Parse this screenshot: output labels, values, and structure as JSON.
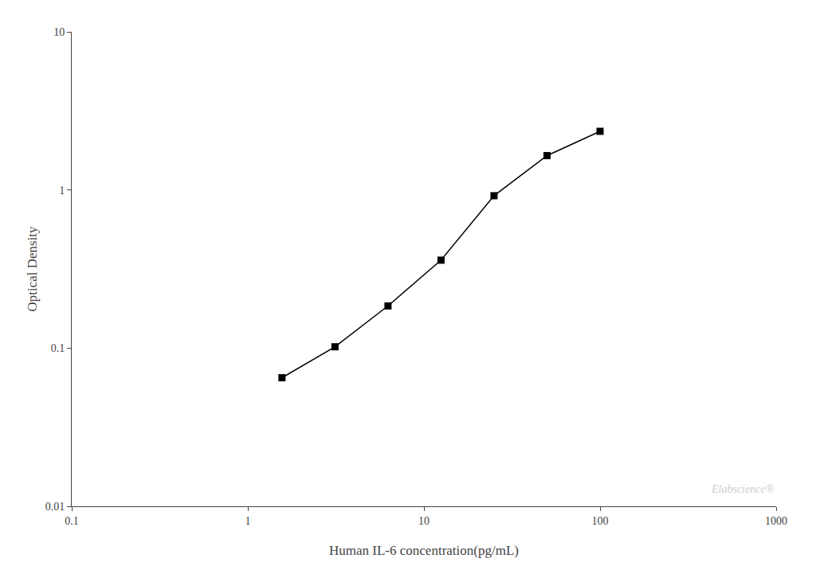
{
  "chart_data": {
    "type": "line",
    "x": [
      1.5625,
      3.125,
      6.25,
      12.5,
      25,
      50,
      100
    ],
    "values": [
      0.065,
      0.102,
      0.185,
      0.36,
      0.92,
      1.65,
      2.35
    ],
    "x_label": "Human IL-6 concentration(pg/mL)",
    "y_label": "Optical Density",
    "xlim": [
      0.1,
      1000
    ],
    "ylim": [
      0.01,
      10
    ],
    "xticks": [
      0.1,
      1,
      10,
      100,
      1000
    ],
    "yticks": [
      0.01,
      0.1,
      1,
      10
    ],
    "log": true,
    "grid": false,
    "color": "#000000",
    "marker": "square",
    "annotations": [
      {
        "text": "Elabscience®",
        "color": "#cccccc"
      }
    ]
  }
}
